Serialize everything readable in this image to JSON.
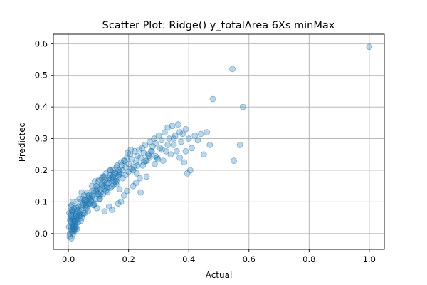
{
  "chart_data": {
    "type": "scatter",
    "title": "Scatter Plot: Ridge() y_totalArea 6Xs minMax",
    "xlabel": "Actual",
    "ylabel": "Predicted",
    "xlim": [
      -0.05,
      1.05
    ],
    "ylim": [
      -0.05,
      0.63
    ],
    "xticks": [
      "0.0",
      "0.2",
      "0.4",
      "0.6",
      "0.8",
      "1.0"
    ],
    "yticks": [
      "0.0",
      "0.1",
      "0.2",
      "0.3",
      "0.4",
      "0.5",
      "0.6"
    ],
    "grid": true,
    "marker_color": "#1f77b4",
    "marker_alpha": 0.3,
    "series": [
      {
        "x": [
          0.005,
          0.008,
          0.01,
          0.012,
          0.004,
          0.015,
          0.018,
          0.02,
          0.006,
          0.009,
          0.011,
          0.013,
          0.016,
          0.022,
          0.025,
          0.007,
          0.003,
          0.014,
          0.017,
          0.021,
          0.024,
          0.028,
          0.03,
          0.01,
          0.012,
          0.019,
          0.023,
          0.026,
          0.032,
          0.035,
          0.002,
          0.008,
          0.015,
          0.018,
          0.027,
          0.031,
          0.036,
          0.04,
          0.011,
          0.014,
          0.02,
          0.029,
          0.033,
          0.038,
          0.042,
          0.045,
          0.05,
          0.055,
          0.06,
          0.048,
          0.052,
          0.058,
          0.062,
          0.065,
          0.07,
          0.044,
          0.046,
          0.053,
          0.057,
          0.066,
          0.016,
          0.013,
          0.009,
          0.021,
          0.025,
          0.006,
          0.017,
          0.012,
          0.024,
          0.028,
          0.03,
          0.034,
          0.037,
          0.041,
          0.047,
          0.051,
          0.056,
          0.061,
          0.068,
          0.072,
          0.075,
          0.08,
          0.085,
          0.09,
          0.095,
          0.1,
          0.078,
          0.083,
          0.088,
          0.092,
          0.098,
          0.102,
          0.105,
          0.11,
          0.115,
          0.12,
          0.125,
          0.13,
          0.135,
          0.14,
          0.145,
          0.15,
          0.155,
          0.16,
          0.165,
          0.17,
          0.108,
          0.112,
          0.118,
          0.122,
          0.128,
          0.133,
          0.138,
          0.142,
          0.148,
          0.152,
          0.158,
          0.162,
          0.168,
          0.175,
          0.18,
          0.185,
          0.19,
          0.195,
          0.2,
          0.205,
          0.21,
          0.215,
          0.22,
          0.225,
          0.23,
          0.235,
          0.24,
          0.245,
          0.25,
          0.255,
          0.26,
          0.265,
          0.27,
          0.275,
          0.28,
          0.285,
          0.29,
          0.295,
          0.3,
          0.305,
          0.31,
          0.315,
          0.32,
          0.325,
          0.33,
          0.335,
          0.34,
          0.345,
          0.35,
          0.355,
          0.36,
          0.365,
          0.37,
          0.375,
          0.38,
          0.385,
          0.39,
          0.395,
          0.4,
          0.405,
          0.41,
          0.42,
          0.43,
          0.44,
          0.45,
          0.46,
          0.47,
          0.48,
          0.545,
          0.55,
          0.57,
          0.58,
          1.0,
          0.12,
          0.135,
          0.145,
          0.165,
          0.175,
          0.185,
          0.195,
          0.215,
          0.225,
          0.24,
          0.26,
          0.085,
          0.095,
          0.105,
          0.115,
          0.125,
          0.14,
          0.15,
          0.16,
          0.17,
          0.18,
          0.19,
          0.2,
          0.21,
          0.23,
          0.25,
          0.27,
          0.29,
          0.31,
          0.33,
          0.35,
          0.37,
          0.39,
          0.065,
          0.075,
          0.082,
          0.097,
          0.107,
          0.117,
          0.127,
          0.137,
          0.147,
          0.157,
          0.167,
          0.177,
          0.187,
          0.197,
          0.207,
          0.217,
          0.227,
          0.237,
          0.247,
          0.257,
          0.267,
          0.277,
          0.287,
          0.297,
          0.043,
          0.054,
          0.063,
          0.071,
          0.079,
          0.087,
          0.093,
          0.099,
          0.103,
          0.111,
          0.119,
          0.129,
          0.139,
          0.149,
          0.159,
          0.169
        ],
        "y": [
          0.0,
          0.01,
          0.02,
          0.005,
          -0.01,
          0.03,
          0.025,
          0.015,
          0.04,
          0.035,
          0.05,
          0.045,
          0.02,
          0.01,
          0.06,
          0.055,
          0.065,
          0.07,
          0.015,
          0.04,
          0.03,
          0.05,
          0.045,
          -0.015,
          0.075,
          0.08,
          0.025,
          0.06,
          0.035,
          0.055,
          0.02,
          0.085,
          0.07,
          0.05,
          0.08,
          0.045,
          0.065,
          0.055,
          0.09,
          0.1,
          0.04,
          0.07,
          0.085,
          0.06,
          0.075,
          0.05,
          0.095,
          0.065,
          0.08,
          0.11,
          0.12,
          0.09,
          0.1,
          0.07,
          0.11,
          0.13,
          0.06,
          0.105,
          0.085,
          0.095,
          0.0,
          0.03,
          0.06,
          0.035,
          0.02,
          0.045,
          0.01,
          0.07,
          0.055,
          0.015,
          0.1,
          0.075,
          0.11,
          0.04,
          0.09,
          0.065,
          0.105,
          0.085,
          0.12,
          0.095,
          0.1,
          0.115,
          0.13,
          0.11,
          0.14,
          0.125,
          0.15,
          0.09,
          0.165,
          0.135,
          0.145,
          0.17,
          0.12,
          0.155,
          0.18,
          0.16,
          0.19,
          0.13,
          0.175,
          0.2,
          0.15,
          0.185,
          0.165,
          0.21,
          0.18,
          0.195,
          0.13,
          0.155,
          0.14,
          0.17,
          0.145,
          0.16,
          0.185,
          0.175,
          0.2,
          0.19,
          0.17,
          0.215,
          0.185,
          0.225,
          0.2,
          0.23,
          0.21,
          0.24,
          0.22,
          0.25,
          0.235,
          0.2,
          0.26,
          0.225,
          0.245,
          0.265,
          0.24,
          0.27,
          0.255,
          0.28,
          0.23,
          0.25,
          0.29,
          0.26,
          0.275,
          0.3,
          0.285,
          0.24,
          0.31,
          0.27,
          0.295,
          0.23,
          0.32,
          0.26,
          0.335,
          0.3,
          0.25,
          0.34,
          0.28,
          0.31,
          0.26,
          0.345,
          0.24,
          0.29,
          0.315,
          0.225,
          0.33,
          0.19,
          0.3,
          0.2,
          0.27,
          0.31,
          0.295,
          0.315,
          0.25,
          0.32,
          0.28,
          0.425,
          0.52,
          0.23,
          0.28,
          0.4,
          0.59,
          0.07,
          0.085,
          0.075,
          0.095,
          0.1,
          0.12,
          0.135,
          0.15,
          0.16,
          0.13,
          0.18,
          0.09,
          0.08,
          0.11,
          0.125,
          0.135,
          0.145,
          0.155,
          0.165,
          0.14,
          0.175,
          0.185,
          0.195,
          0.205,
          0.215,
          0.225,
          0.24,
          0.245,
          0.265,
          0.28,
          0.3,
          0.32,
          0.26,
          0.12,
          0.105,
          0.135,
          0.125,
          0.14,
          0.15,
          0.16,
          0.17,
          0.18,
          0.19,
          0.2,
          0.215,
          0.23,
          0.255,
          0.265,
          0.21,
          0.19,
          0.175,
          0.215,
          0.23,
          0.245,
          0.26,
          0.22,
          0.235,
          0.085,
          0.1,
          0.13,
          0.115,
          0.12,
          0.095,
          0.15,
          0.165,
          0.11,
          0.175,
          0.18,
          0.145,
          0.2,
          0.17,
          0.155,
          0.19
        ]
      }
    ]
  }
}
